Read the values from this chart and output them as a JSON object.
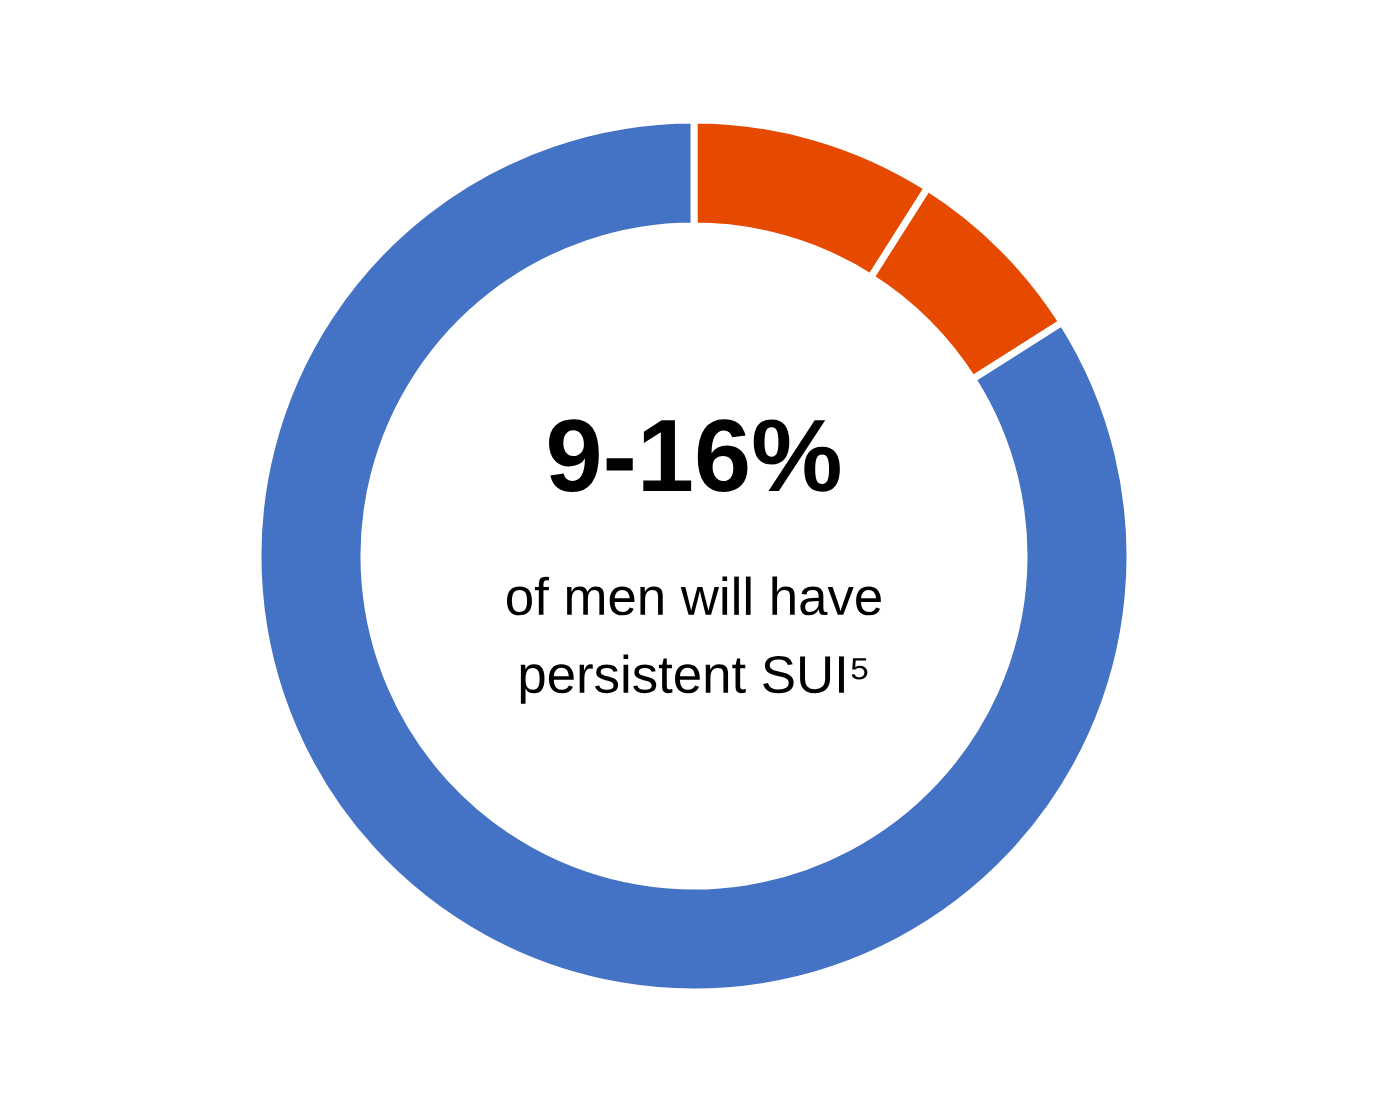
{
  "chart_data": {
    "type": "donut",
    "categories": [
      null,
      null,
      null
    ],
    "values": [
      9,
      7,
      84
    ],
    "colors": [
      "#e64a00",
      "#e64a00",
      "#4472c4"
    ],
    "annotations": [
      "9-16%",
      "of men will have\npersistent SUI⁵"
    ]
  }
}
